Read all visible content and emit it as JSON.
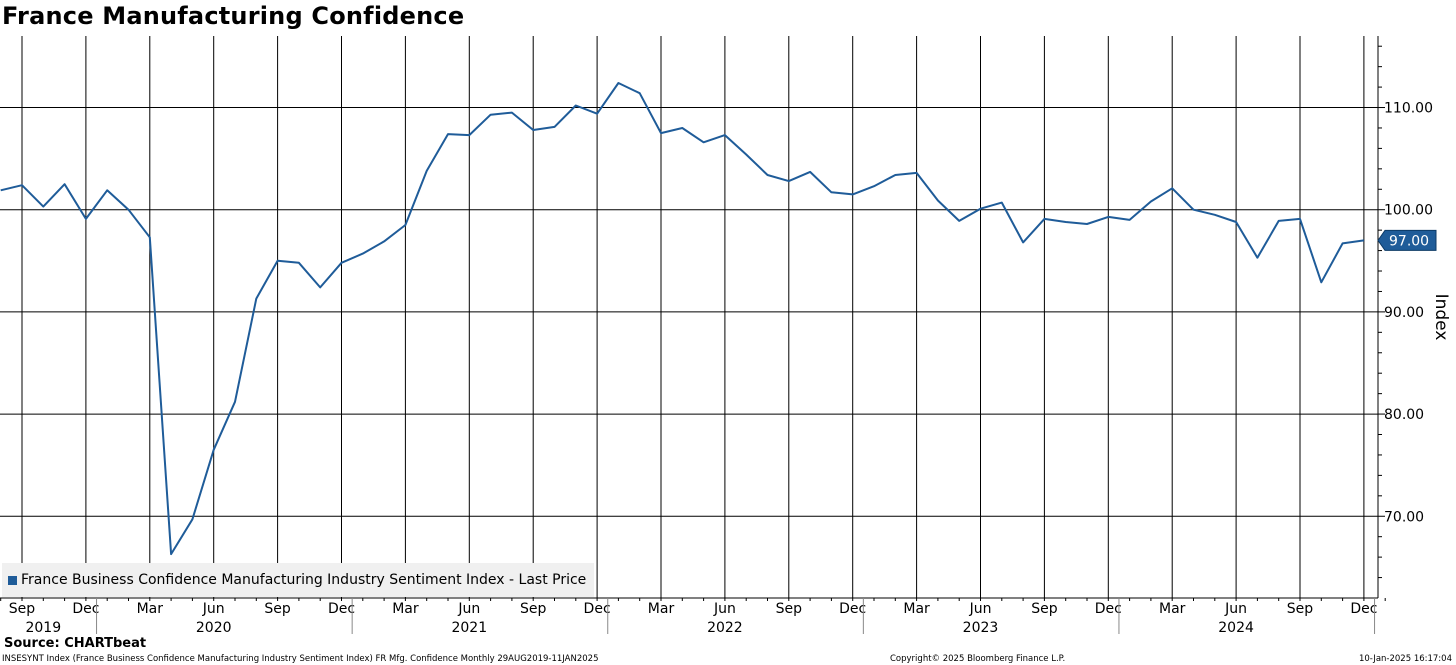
{
  "header": {
    "title": "France Manufacturing Confidence"
  },
  "legend": {
    "label": "France Business Confidence Manufacturing Industry Sentiment Index - Last Price"
  },
  "last_price_label": "97.00",
  "footer": {
    "source": "Source: CHARTbeat",
    "left": "INSESYNT Index (France Business Confidence Manufacturing Industry Sentiment Index) FR Mfg. Confidence  Monthly 29AUG2019-11JAN2025",
    "middle": "Copyright© 2025 Bloomberg Finance L.P.",
    "right": "10-Jan-2025 16:17:04"
  },
  "colors": {
    "series": "#1f5c99",
    "grid": "#000000",
    "legend_bg": "#f0f0f0"
  },
  "chart_data": {
    "type": "line",
    "title": "France Manufacturing Confidence",
    "ylabel": "Index",
    "ylim": [
      62,
      117
    ],
    "y_ticks": [
      {
        "value": 110,
        "label": "110.00"
      },
      {
        "value": 100,
        "label": "100.00"
      },
      {
        "value": 90,
        "label": "90.00"
      },
      {
        "value": 80,
        "label": "80.00"
      },
      {
        "value": 70,
        "label": "70.00"
      }
    ],
    "x_range": [
      "2019-08",
      "2025-01"
    ],
    "x_month_ticks": [
      {
        "date": "2019-09",
        "label": "Sep"
      },
      {
        "date": "2019-12",
        "label": "Dec"
      },
      {
        "date": "2020-03",
        "label": "Mar"
      },
      {
        "date": "2020-06",
        "label": "Jun"
      },
      {
        "date": "2020-09",
        "label": "Sep"
      },
      {
        "date": "2020-12",
        "label": "Dec"
      },
      {
        "date": "2021-03",
        "label": "Mar"
      },
      {
        "date": "2021-06",
        "label": "Jun"
      },
      {
        "date": "2021-09",
        "label": "Sep"
      },
      {
        "date": "2021-12",
        "label": "Dec"
      },
      {
        "date": "2022-03",
        "label": "Mar"
      },
      {
        "date": "2022-06",
        "label": "Jun"
      },
      {
        "date": "2022-09",
        "label": "Sep"
      },
      {
        "date": "2022-12",
        "label": "Dec"
      },
      {
        "date": "2023-03",
        "label": "Mar"
      },
      {
        "date": "2023-06",
        "label": "Jun"
      },
      {
        "date": "2023-09",
        "label": "Sep"
      },
      {
        "date": "2023-12",
        "label": "Dec"
      },
      {
        "date": "2024-03",
        "label": "Mar"
      },
      {
        "date": "2024-06",
        "label": "Jun"
      },
      {
        "date": "2024-09",
        "label": "Sep"
      },
      {
        "date": "2024-12",
        "label": "Dec"
      }
    ],
    "x_year_labels": [
      {
        "date": "2019-10",
        "label": "2019"
      },
      {
        "date": "2020-06",
        "label": "2020"
      },
      {
        "date": "2021-06",
        "label": "2021"
      },
      {
        "date": "2022-06",
        "label": "2022"
      },
      {
        "date": "2023-06",
        "label": "2023"
      },
      {
        "date": "2024-06",
        "label": "2024"
      }
    ],
    "year_boundaries": [
      "2020-01",
      "2021-01",
      "2022-01",
      "2023-01",
      "2024-01",
      "2025-01"
    ],
    "grid": true,
    "legend_position": "bottom-left",
    "series": [
      {
        "name": "France Business Confidence Manufacturing Industry Sentiment Index - Last Price",
        "points": [
          [
            "2019-08",
            101.9
          ],
          [
            "2019-09",
            102.4
          ],
          [
            "2019-10",
            100.3
          ],
          [
            "2019-11",
            102.5
          ],
          [
            "2019-12",
            99.1
          ],
          [
            "2020-01",
            101.9
          ],
          [
            "2020-02",
            100.0
          ],
          [
            "2020-03",
            97.3
          ],
          [
            "2020-04",
            66.3
          ],
          [
            "2020-05",
            69.7
          ],
          [
            "2020-06",
            76.5
          ],
          [
            "2020-07",
            81.2
          ],
          [
            "2020-08",
            91.3
          ],
          [
            "2020-09",
            95.0
          ],
          [
            "2020-10",
            94.8
          ],
          [
            "2020-11",
            92.4
          ],
          [
            "2020-12",
            94.8
          ],
          [
            "2021-01",
            95.7
          ],
          [
            "2021-02",
            96.9
          ],
          [
            "2021-03",
            98.5
          ],
          [
            "2021-04",
            103.8
          ],
          [
            "2021-05",
            107.4
          ],
          [
            "2021-06",
            107.3
          ],
          [
            "2021-07",
            109.3
          ],
          [
            "2021-08",
            109.5
          ],
          [
            "2021-09",
            107.8
          ],
          [
            "2021-10",
            108.1
          ],
          [
            "2021-11",
            110.2
          ],
          [
            "2021-12",
            109.4
          ],
          [
            "2022-01",
            112.4
          ],
          [
            "2022-02",
            111.4
          ],
          [
            "2022-03",
            107.5
          ],
          [
            "2022-04",
            108.0
          ],
          [
            "2022-05",
            106.6
          ],
          [
            "2022-06",
            107.3
          ],
          [
            "2022-07",
            105.4
          ],
          [
            "2022-08",
            103.4
          ],
          [
            "2022-09",
            102.8
          ],
          [
            "2022-10",
            103.7
          ],
          [
            "2022-11",
            101.7
          ],
          [
            "2022-12",
            101.5
          ],
          [
            "2023-01",
            102.3
          ],
          [
            "2023-02",
            103.4
          ],
          [
            "2023-03",
            103.6
          ],
          [
            "2023-04",
            100.9
          ],
          [
            "2023-05",
            98.9
          ],
          [
            "2023-06",
            100.1
          ],
          [
            "2023-07",
            100.7
          ],
          [
            "2023-08",
            96.8
          ],
          [
            "2023-09",
            99.1
          ],
          [
            "2023-10",
            98.8
          ],
          [
            "2023-11",
            98.6
          ],
          [
            "2023-12",
            99.3
          ],
          [
            "2024-01",
            99.0
          ],
          [
            "2024-02",
            100.8
          ],
          [
            "2024-03",
            102.1
          ],
          [
            "2024-04",
            100.0
          ],
          [
            "2024-05",
            99.5
          ],
          [
            "2024-06",
            98.8
          ],
          [
            "2024-07",
            95.3
          ],
          [
            "2024-08",
            98.9
          ],
          [
            "2024-09",
            99.1
          ],
          [
            "2024-10",
            92.9
          ],
          [
            "2024-11",
            96.7
          ],
          [
            "2024-12",
            97.0
          ]
        ]
      }
    ]
  }
}
